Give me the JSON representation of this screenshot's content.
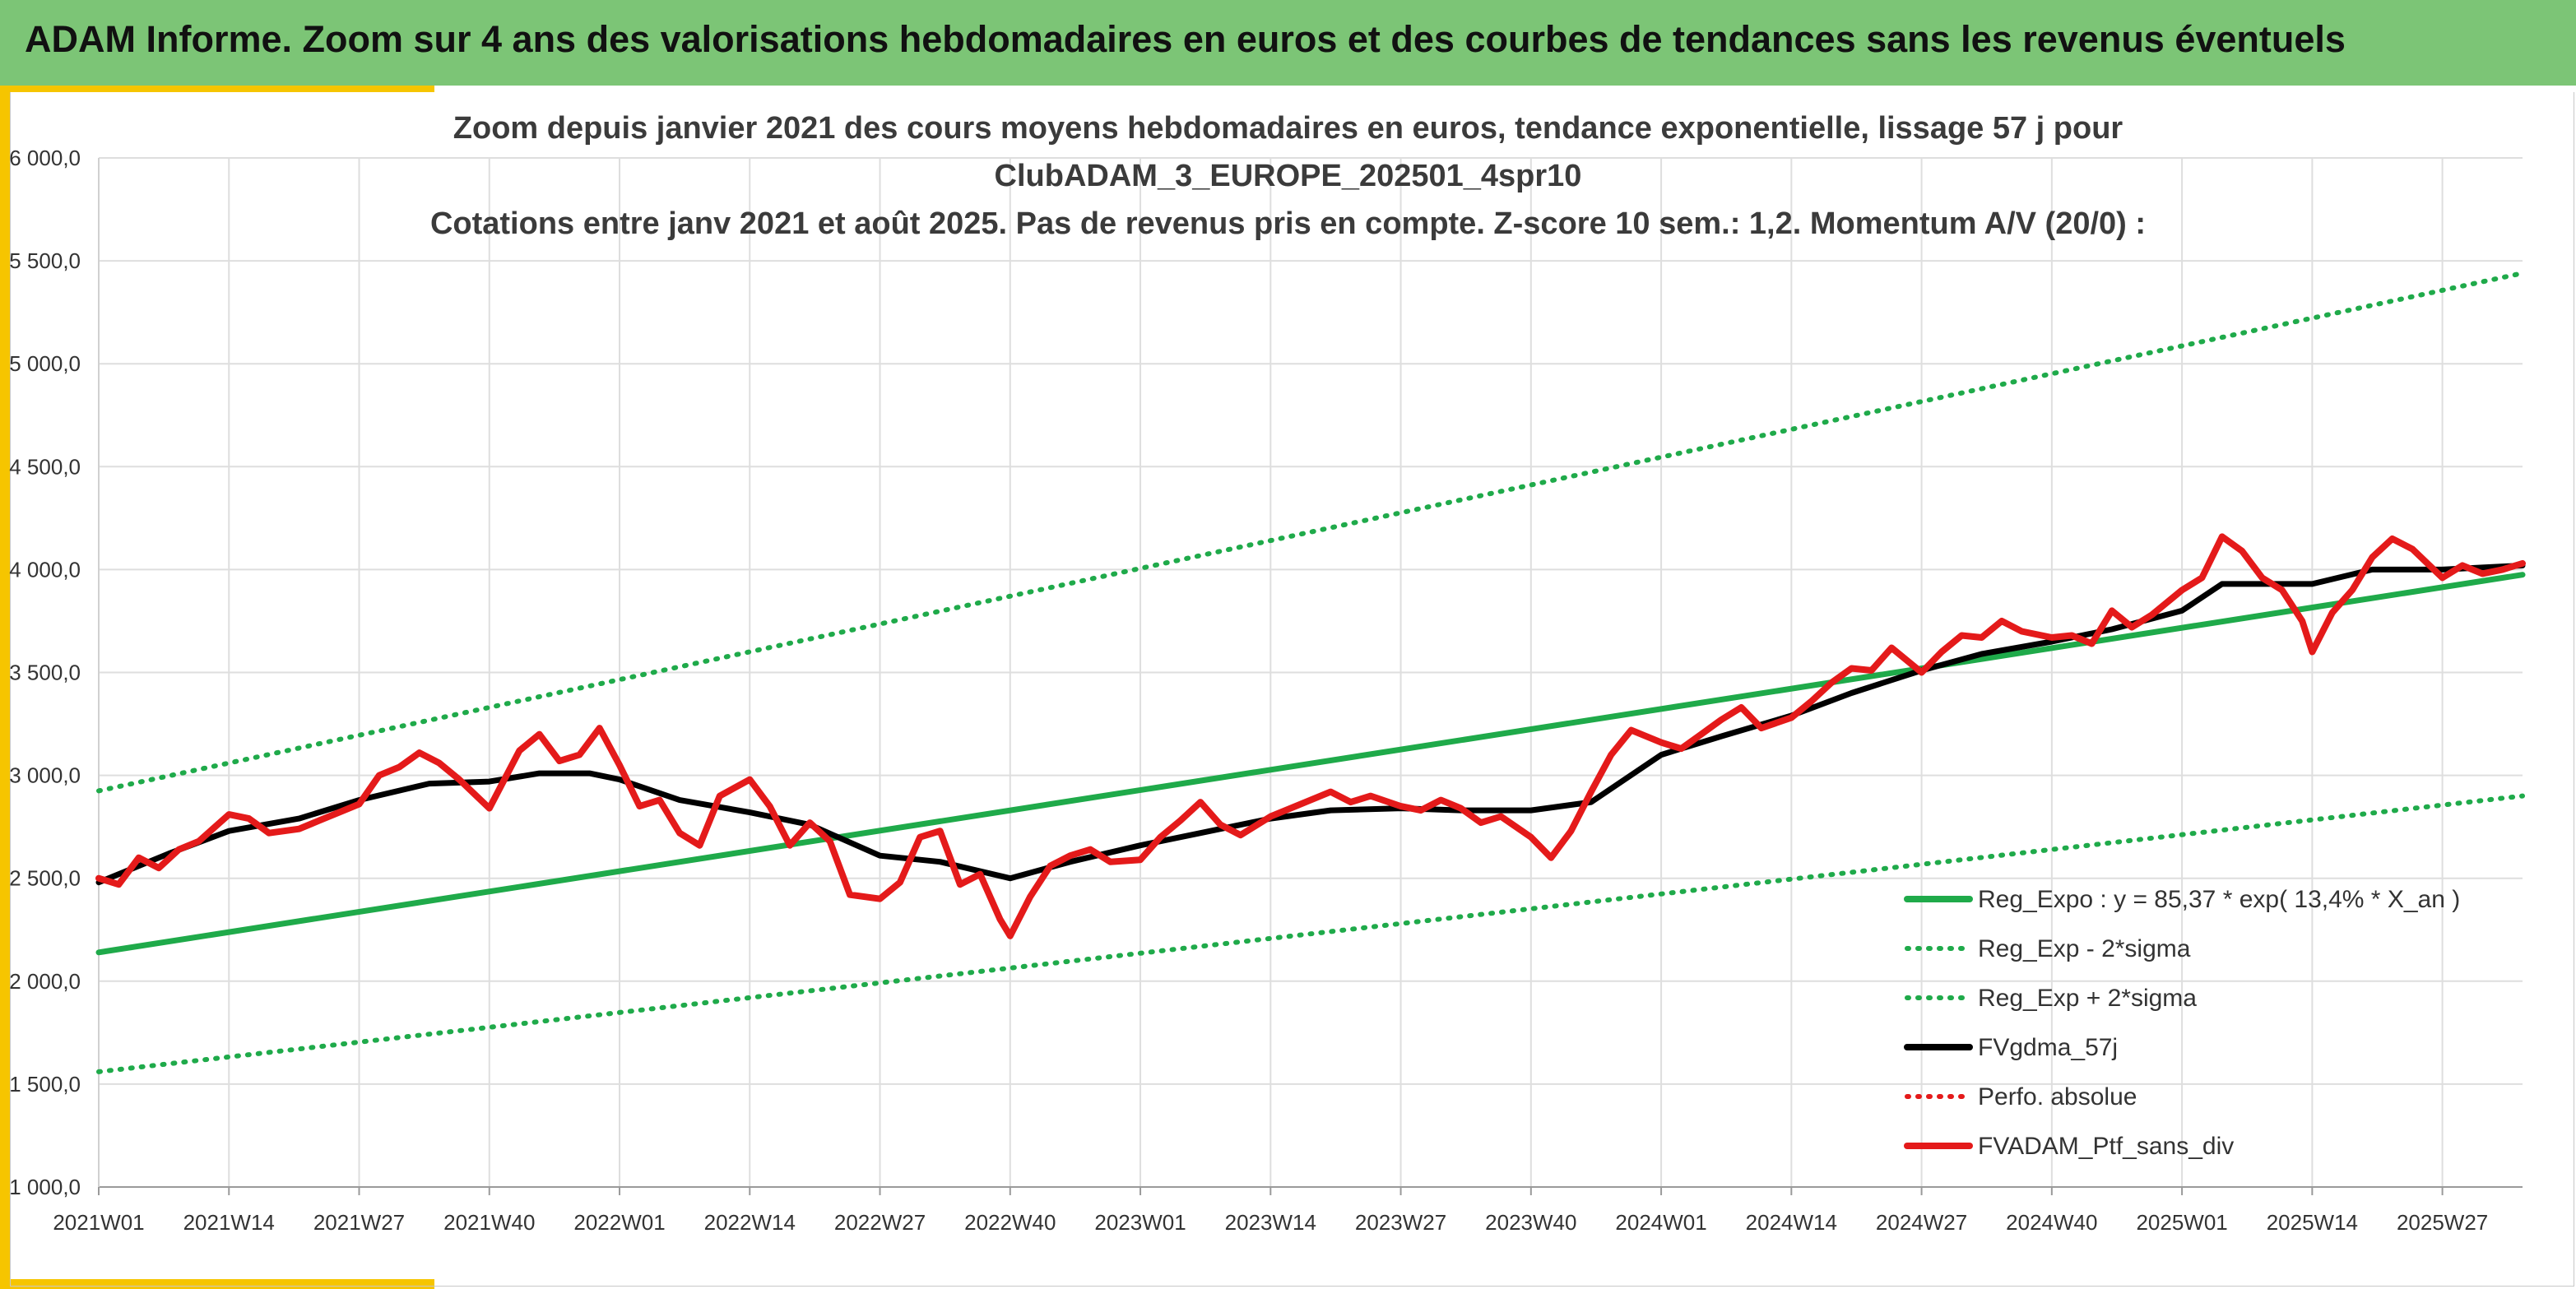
{
  "banner": {
    "title": "ADAM Informe. Zoom sur 4 ans des valorisations hebdomadaires en euros et des courbes de tendances sans les revenus éventuels"
  },
  "chart_data": {
    "type": "line",
    "title": [
      "Zoom depuis janvier 2021 des cours moyens hebdomadaires en euros, tendance exponentielle, lissage 57 j pour",
      "ClubADAM_3_EUROPE_202501_4spr10",
      "Cotations entre janv 2021 et août 2025. Pas de revenus pris en compte. Z-score 10 sem.: 1,2. Momentum A/V (20/0) :"
    ],
    "xlabel": "",
    "ylabel": "",
    "ylim": [
      1000,
      6000
    ],
    "y_ticks": [
      "6 000,0",
      "5 500,0",
      "5 000,0",
      "4 500,0",
      "4 000,0",
      "3 500,0",
      "3 000,0",
      "2 500,0",
      "2 000,0",
      "1 500,0",
      "1 000,0"
    ],
    "x_ticks": [
      "2021W01",
      "2021W14",
      "2021W27",
      "2021W40",
      "2022W01",
      "2022W14",
      "2022W27",
      "2022W40",
      "2023W01",
      "2023W14",
      "2023W27",
      "2023W40",
      "2024W01",
      "2024W14",
      "2024W27",
      "2024W40",
      "2025W01",
      "2025W14",
      "2025W27"
    ],
    "grid": true,
    "legend_position": "bottom-right",
    "series": [
      {
        "name": "Reg_Expo : y = 85,37 * exp( 13,4% *  X_an )",
        "color": "#1faa4a",
        "style": "solid",
        "x": [
          "2021W01",
          "2025W35"
        ],
        "values": [
          2140,
          3975
        ]
      },
      {
        "name": "Reg_Exp - 2*sigma",
        "color": "#1faa4a",
        "style": "dotted",
        "x": [
          "2021W01",
          "2025W35"
        ],
        "values": [
          1560,
          2900
        ]
      },
      {
        "name": "Reg_Exp + 2*sigma",
        "color": "#1faa4a",
        "style": "dotted",
        "x": [
          "2021W01",
          "2025W35"
        ],
        "values": [
          2925,
          5440
        ]
      },
      {
        "name": "FVgdma_57j",
        "color": "#000000",
        "style": "solid",
        "x": [
          "2021W01",
          "2021W08",
          "2021W14",
          "2021W21",
          "2021W27",
          "2021W34",
          "2021W40",
          "2021W45",
          "2021W50",
          "2022W01",
          "2022W07",
          "2022W14",
          "2022W20",
          "2022W27",
          "2022W33",
          "2022W40",
          "2022W46",
          "2023W01",
          "2023W07",
          "2023W14",
          "2023W20",
          "2023W27",
          "2023W33",
          "2023W40",
          "2023W46",
          "2024W01",
          "2024W07",
          "2024W14",
          "2024W20",
          "2024W27",
          "2024W33",
          "2024W40",
          "2024W46",
          "2025W01",
          "2025W05",
          "2025W10",
          "2025W14",
          "2025W20",
          "2025W27",
          "2025W35"
        ],
        "values": [
          2480,
          2620,
          2730,
          2790,
          2880,
          2960,
          2970,
          3010,
          3010,
          2980,
          2880,
          2820,
          2760,
          2610,
          2580,
          2500,
          2580,
          2660,
          2720,
          2790,
          2830,
          2840,
          2830,
          2830,
          2870,
          3100,
          3190,
          3290,
          3400,
          3510,
          3590,
          3650,
          3710,
          3800,
          3930,
          3930,
          3930,
          4000,
          4000,
          4020
        ]
      },
      {
        "name": "Perfo. absolue",
        "color": "#e41a1a",
        "style": "dotted",
        "x": [],
        "values": []
      },
      {
        "name": "FVADAM_Ptf_sans_div",
        "color": "#e41a1a",
        "style": "solid",
        "x": [
          "2021W01",
          "2021W03",
          "2021W05",
          "2021W07",
          "2021W09",
          "2021W11",
          "2021W14",
          "2021W16",
          "2021W18",
          "2021W21",
          "2021W23",
          "2021W25",
          "2021W27",
          "2021W29",
          "2021W31",
          "2021W33",
          "2021W35",
          "2021W37",
          "2021W40",
          "2021W43",
          "2021W45",
          "2021W47",
          "2021W49",
          "2021W51",
          "2022W01",
          "2022W03",
          "2022W05",
          "2022W07",
          "2022W09",
          "2022W11",
          "2022W14",
          "2022W16",
          "2022W18",
          "2022W20",
          "2022W22",
          "2022W24",
          "2022W27",
          "2022W29",
          "2022W31",
          "2022W33",
          "2022W35",
          "2022W37",
          "2022W39",
          "2022W40",
          "2022W42",
          "2022W44",
          "2022W46",
          "2022W48",
          "2022W50",
          "2023W01",
          "2023W03",
          "2023W05",
          "2023W07",
          "2023W09",
          "2023W11",
          "2023W14",
          "2023W16",
          "2023W18",
          "2023W20",
          "2023W22",
          "2023W24",
          "2023W27",
          "2023W29",
          "2023W31",
          "2023W33",
          "2023W35",
          "2023W37",
          "2023W40",
          "2023W42",
          "2023W44",
          "2023W46",
          "2023W48",
          "2023W50",
          "2024W01",
          "2024W03",
          "2024W05",
          "2024W07",
          "2024W09",
          "2024W11",
          "2024W14",
          "2024W16",
          "2024W18",
          "2024W20",
          "2024W22",
          "2024W24",
          "2024W27",
          "2024W29",
          "2024W31",
          "2024W33",
          "2024W35",
          "2024W37",
          "2024W40",
          "2024W42",
          "2024W44",
          "2024W46",
          "2024W48",
          "2024W50",
          "2025W01",
          "2025W03",
          "2025W05",
          "2025W07",
          "2025W09",
          "2025W11",
          "2025W13",
          "2025W14",
          "2025W16",
          "2025W18",
          "2025W20",
          "2025W22",
          "2025W24",
          "2025W27",
          "2025W29",
          "2025W31",
          "2025W33",
          "2025W35"
        ],
        "values": [
          2500,
          2470,
          2600,
          2550,
          2640,
          2680,
          2810,
          2790,
          2720,
          2740,
          2780,
          2820,
          2860,
          3000,
          3040,
          3110,
          3060,
          2980,
          2840,
          3120,
          3200,
          3070,
          3100,
          3230,
          3050,
          2850,
          2880,
          2720,
          2660,
          2900,
          2980,
          2850,
          2660,
          2770,
          2680,
          2420,
          2400,
          2480,
          2700,
          2730,
          2470,
          2520,
          2300,
          2220,
          2410,
          2560,
          2610,
          2640,
          2580,
          2590,
          2700,
          2780,
          2870,
          2760,
          2710,
          2800,
          2840,
          2880,
          2920,
          2870,
          2900,
          2850,
          2830,
          2880,
          2840,
          2770,
          2800,
          2700,
          2600,
          2730,
          2920,
          3100,
          3220,
          3160,
          3130,
          3200,
          3270,
          3330,
          3230,
          3280,
          3360,
          3450,
          3520,
          3510,
          3620,
          3500,
          3600,
          3680,
          3670,
          3750,
          3700,
          3670,
          3680,
          3640,
          3800,
          3720,
          3780,
          3900,
          3960,
          4160,
          4090,
          3960,
          3900,
          3750,
          3600,
          3790,
          3900,
          4060,
          4150,
          4100,
          3960,
          4020,
          3980,
          4000,
          4030
        ]
      }
    ]
  }
}
